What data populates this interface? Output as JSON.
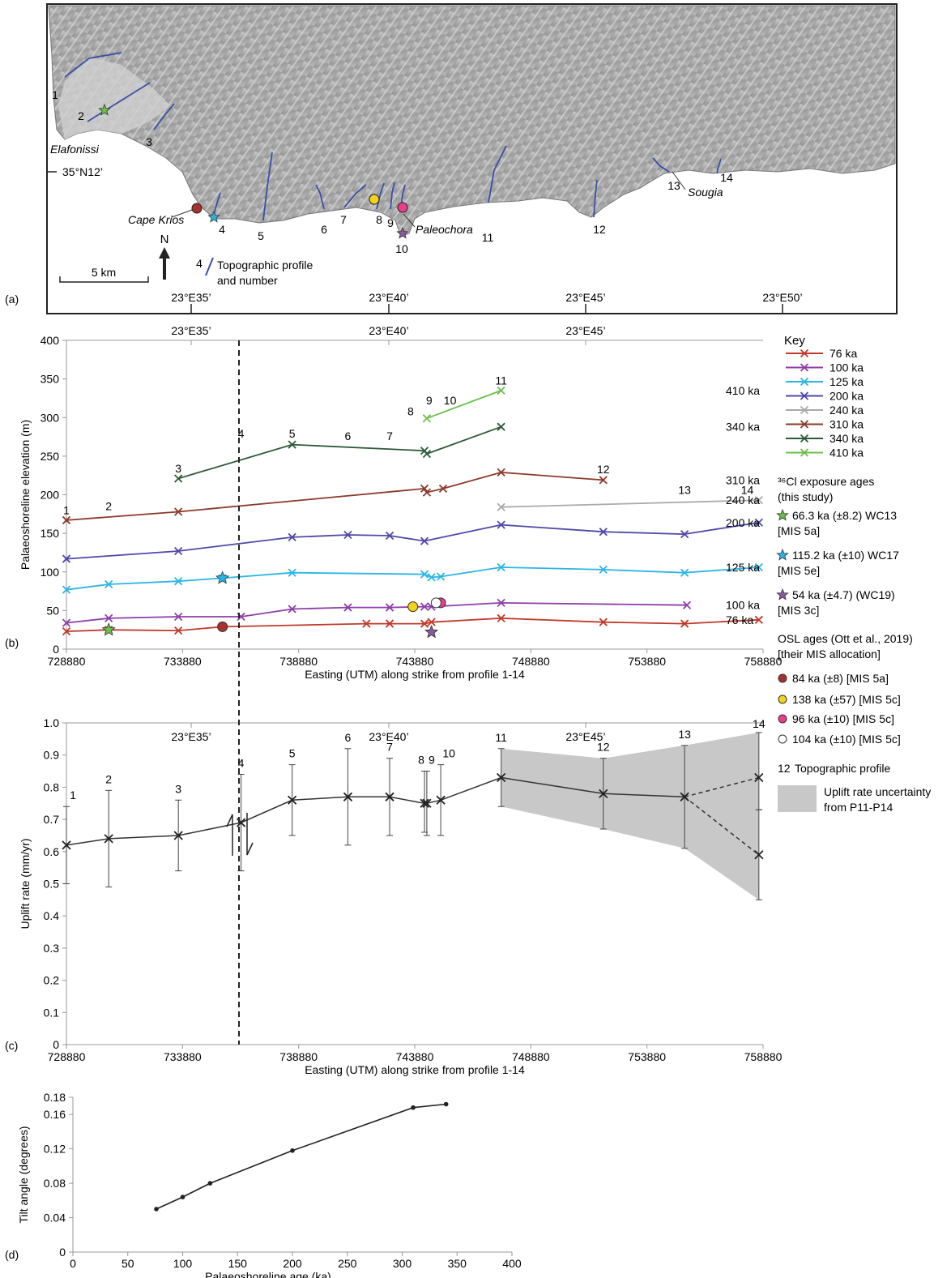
{
  "panel_letters": {
    "a": "(a)",
    "b": "(b)",
    "c": "(c)",
    "d": "(d)"
  },
  "map": {
    "lon_labels": [
      "23°E35’",
      "23°E40’",
      "23°E45’",
      "23°E50’"
    ],
    "lat_label": "35°N12’",
    "places": [
      "Elafonissi",
      "Cape Krios",
      "Paleochora",
      "Sougia"
    ],
    "profile_numbers": [
      "1",
      "2",
      "3",
      "4",
      "5",
      "6",
      "7",
      "8",
      "9",
      "10",
      "11",
      "12",
      "13",
      "14"
    ],
    "scale_label": "5 km",
    "north_label": "N",
    "legend_number": "4",
    "legend_text_1": "Topographic profile",
    "legend_text_2": "and number",
    "colors": {
      "land": "#b4b4b4",
      "sea": "#ffffff",
      "profile": "#3a4fa8"
    }
  },
  "top_lon_labels": [
    "23°E35’",
    "23°E40’",
    "23°E45’"
  ],
  "key": {
    "title": "Key",
    "series": [
      {
        "label": "76 ka",
        "color": "#c0392b"
      },
      {
        "label": "100 ka",
        "color": "#8e3fa8"
      },
      {
        "label": "125 ka",
        "color": "#2bb5e6"
      },
      {
        "label": "200 ka",
        "color": "#5048a8"
      },
      {
        "label": "240 ka",
        "color": "#aaaaaa"
      },
      {
        "label": "310 ka",
        "color": "#8b3a2a"
      },
      {
        "label": "340 ka",
        "color": "#2f5a3a"
      },
      {
        "label": "410 ka",
        "color": "#6cbf4a"
      }
    ],
    "cl_title_1": "³⁶Cl exposure ages",
    "cl_title_2": "(this study)",
    "cl_items": [
      {
        "line1": "66.3 ka (±8.2) WC13",
        "line2": "[MIS 5a]",
        "color": "#6cbf4a"
      },
      {
        "line1": "115.2 ka (±10) WC17",
        "line2": "[MIS 5e]",
        "color": "#2bb5e6"
      },
      {
        "line1": "54 ka (±4.7) (WC19)",
        "line2": "[MIS 3c]",
        "color": "#8a5aa0"
      }
    ],
    "osl_title_1": "OSL ages (Ott et al., 2019)",
    "osl_title_2": "[their MIS allocation]",
    "osl_items": [
      {
        "label": "84 ka (±8) [MIS 5a]",
        "color": "#a5322d"
      },
      {
        "label": "138 ka (±57) [MIS 5c]",
        "color": "#f2d21b"
      },
      {
        "label": "96 ka (±10) [MIS 5c]",
        "color": "#e83e8c"
      },
      {
        "label": "104 ka (±10) [MIS 5c]",
        "color": "#ffffff"
      }
    ],
    "profile_num": "12",
    "profile_text": "Topographic profile",
    "uncert_text_1": "Uplift rate uncertainty",
    "uncert_text_2": "from P11-P14"
  },
  "chart_data": [
    {
      "type": "line",
      "title": "",
      "xlabel": "Easting (UTM) along strike from profile 1-14",
      "ylabel": "Palaeoshoreline elevation (m)",
      "xlim": [
        728880,
        758880
      ],
      "ylim": [
        0,
        400
      ],
      "xticks": [
        "728880",
        "733880",
        "738880",
        "743880",
        "748880",
        "753880",
        "758880"
      ],
      "yticks": [
        "0",
        "50",
        "100",
        "150",
        "200",
        "250",
        "300",
        "350",
        "400"
      ],
      "series": [
        {
          "name": "76 ka",
          "color": "#c0392b",
          "end_label": "76 ka",
          "points": [
            [
              728880,
              23
            ],
            [
              730700,
              25
            ],
            [
              733700,
              24
            ],
            [
              735600,
              29
            ],
            [
              741800,
              33
            ],
            [
              742800,
              33
            ],
            [
              744300,
              33
            ],
            [
              744600,
              35
            ],
            [
              747600,
              40
            ],
            [
              752000,
              35
            ],
            [
              755500,
              33
            ],
            [
              758700,
              38
            ]
          ]
        },
        {
          "name": "100 ka",
          "color": "#8e3fa8",
          "end_label": "100 ka",
          "points": [
            [
              728880,
              34
            ],
            [
              730700,
              40
            ],
            [
              733700,
              42
            ],
            [
              736400,
              42
            ],
            [
              738600,
              52
            ],
            [
              741000,
              54
            ],
            [
              742800,
              54
            ],
            [
              744300,
              55
            ],
            [
              744600,
              55
            ],
            [
              747600,
              60
            ],
            [
              755600,
              57
            ]
          ]
        },
        {
          "name": "125 ka",
          "color": "#2bb5e6",
          "end_label": "125 ka",
          "points": [
            [
              728880,
              77
            ],
            [
              730700,
              84
            ],
            [
              733700,
              88
            ],
            [
              735600,
              92
            ],
            [
              738600,
              99
            ],
            [
              744300,
              97
            ],
            [
              744600,
              93
            ],
            [
              745000,
              94
            ],
            [
              747600,
              106
            ],
            [
              752000,
              103
            ],
            [
              755500,
              99
            ],
            [
              758700,
              106
            ]
          ]
        },
        {
          "name": "200 ka",
          "color": "#5048a8",
          "end_label": "200 ka",
          "points": [
            [
              728880,
              117
            ],
            [
              733700,
              127
            ],
            [
              738600,
              145
            ],
            [
              741000,
              148
            ],
            [
              742800,
              147
            ],
            [
              744300,
              140
            ],
            [
              747600,
              161
            ],
            [
              752000,
              152
            ],
            [
              755500,
              149
            ],
            [
              758700,
              164
            ]
          ]
        },
        {
          "name": "240 ka",
          "color": "#aaaaaa",
          "end_label": "240 ka",
          "points": [
            [
              747600,
              184
            ],
            [
              758700,
              193
            ]
          ]
        },
        {
          "name": "310 ka",
          "color": "#8b3a2a",
          "end_label": "310 ka",
          "points": [
            [
              728880,
              167
            ],
            [
              733700,
              178
            ],
            [
              744300,
              208
            ],
            [
              744400,
              203
            ],
            [
              745100,
              208
            ],
            [
              747600,
              229
            ],
            [
              752000,
              219
            ]
          ]
        },
        {
          "name": "340 ka",
          "color": "#2f5a3a",
          "end_label": "340 ka",
          "points": [
            [
              733700,
              221
            ],
            [
              738600,
              265
            ],
            [
              744300,
              257
            ],
            [
              744400,
              253
            ],
            [
              747600,
              288
            ]
          ]
        },
        {
          "name": "410 ka",
          "color": "#6cbf4a",
          "end_label": "410 ka",
          "points": [
            [
              744400,
              299
            ],
            [
              747600,
              335
            ]
          ]
        }
      ],
      "profile_labels": [
        {
          "text": "1",
          "x": 728880,
          "y": 175
        },
        {
          "text": "2",
          "x": 730700,
          "y": 180
        },
        {
          "text": "3",
          "x": 733700,
          "y": 229
        },
        {
          "text": "4",
          "x": 736400,
          "y": 274
        },
        {
          "text": "5",
          "x": 738600,
          "y": 274
        },
        {
          "text": "6",
          "x": 741000,
          "y": 271
        },
        {
          "text": "7",
          "x": 742800,
          "y": 271
        },
        {
          "text": "8",
          "x": 743700,
          "y": 303
        },
        {
          "text": "9",
          "x": 744500,
          "y": 317
        },
        {
          "text": "10",
          "x": 745400,
          "y": 317
        },
        {
          "text": "11",
          "x": 747600,
          "y": 343
        },
        {
          "text": "12",
          "x": 752000,
          "y": 228
        },
        {
          "text": "13",
          "x": 755500,
          "y": 201
        },
        {
          "text": "14",
          "x": 758200,
          "y": 201
        }
      ],
      "markers": [
        {
          "kind": "star",
          "x": 730700,
          "y": 25,
          "color": "#6cbf4a"
        },
        {
          "kind": "star",
          "x": 735600,
          "y": 92,
          "color": "#2bb5e6"
        },
        {
          "kind": "star",
          "x": 744600,
          "y": 22,
          "color": "#8a5aa0"
        },
        {
          "kind": "circle",
          "x": 735600,
          "y": 29,
          "color": "#a5322d"
        },
        {
          "kind": "circle",
          "x": 743800,
          "y": 55,
          "color": "#f2d21b"
        },
        {
          "kind": "circle",
          "x": 745000,
          "y": 60,
          "color": "#e83e8c"
        },
        {
          "kind": "circle",
          "x": 744800,
          "y": 60,
          "color": "#ffffff"
        }
      ],
      "fault_x": 737000
    },
    {
      "type": "line",
      "title": "",
      "xlabel": "Easting (UTM) along strike from profile 1-14",
      "ylabel": "Uplift rate (mm/yr)",
      "xlim": [
        728880,
        758880
      ],
      "ylim": [
        0,
        1.0
      ],
      "xticks": [
        "728880",
        "733880",
        "738880",
        "743880",
        "748880",
        "753880",
        "758880"
      ],
      "yticks": [
        "0",
        "0.1",
        "0.2",
        "0.3",
        "0.4",
        "0.5",
        "0.6",
        "0.7",
        "0.8",
        "0.9",
        "1.0"
      ],
      "points": [
        {
          "label": "1",
          "x": 728880,
          "y": 0.62,
          "lo": 0.5,
          "hi": 0.74
        },
        {
          "label": "2",
          "x": 730700,
          "y": 0.64,
          "lo": 0.49,
          "hi": 0.79
        },
        {
          "label": "3",
          "x": 733700,
          "y": 0.65,
          "lo": 0.54,
          "hi": 0.76
        },
        {
          "label": "4",
          "x": 736400,
          "y": 0.69,
          "lo": 0.54,
          "hi": 0.84
        },
        {
          "label": "5",
          "x": 738600,
          "y": 0.76,
          "lo": 0.65,
          "hi": 0.87
        },
        {
          "label": "6",
          "x": 741000,
          "y": 0.77,
          "lo": 0.62,
          "hi": 0.92
        },
        {
          "label": "7",
          "x": 742800,
          "y": 0.77,
          "lo": 0.65,
          "hi": 0.89
        },
        {
          "label": "8",
          "x": 744300,
          "y": 0.75,
          "lo": 0.66,
          "hi": 0.85
        },
        {
          "label": "9",
          "x": 744400,
          "y": 0.75,
          "lo": 0.65,
          "hi": 0.85
        },
        {
          "label": "10",
          "x": 745000,
          "y": 0.76,
          "lo": 0.65,
          "hi": 0.87
        },
        {
          "label": "11",
          "x": 747600,
          "y": 0.83,
          "lo": 0.74,
          "hi": 0.92
        },
        {
          "label": "12",
          "x": 752000,
          "y": 0.78,
          "lo": 0.67,
          "hi": 0.89
        },
        {
          "label": "13",
          "x": 755500,
          "y": 0.77,
          "lo": 0.61,
          "hi": 0.93
        },
        {
          "label": "14",
          "x": 758700,
          "y": 0.83,
          "lo": 0.73,
          "hi": 0.97
        }
      ],
      "alt_point": {
        "x": 758700,
        "y": 0.59,
        "lo": 0.45,
        "hi": 0.73
      },
      "uncertainty_band": {
        "x": [
          747600,
          752000,
          755500,
          758700
        ],
        "upper": [
          0.92,
          0.89,
          0.93,
          0.97
        ],
        "lower": [
          0.74,
          0.67,
          0.61,
          0.45
        ]
      },
      "fault_x": 737000
    },
    {
      "type": "line",
      "title": "",
      "xlabel": "Palaeoshoreline age (ka)",
      "ylabel": "Tilt angle (degrees)",
      "xlim": [
        0,
        400
      ],
      "ylim": [
        0,
        0.18
      ],
      "xticks": [
        "0",
        "50",
        "100",
        "150",
        "200",
        "250",
        "300",
        "350",
        "400"
      ],
      "yticks": [
        "0",
        "0.04",
        "0.08",
        "0.12",
        "0.16",
        "0.18"
      ],
      "x": [
        76,
        100,
        125,
        200,
        310,
        340
      ],
      "y": [
        0.05,
        0.064,
        0.08,
        0.118,
        0.168,
        0.172
      ]
    }
  ]
}
